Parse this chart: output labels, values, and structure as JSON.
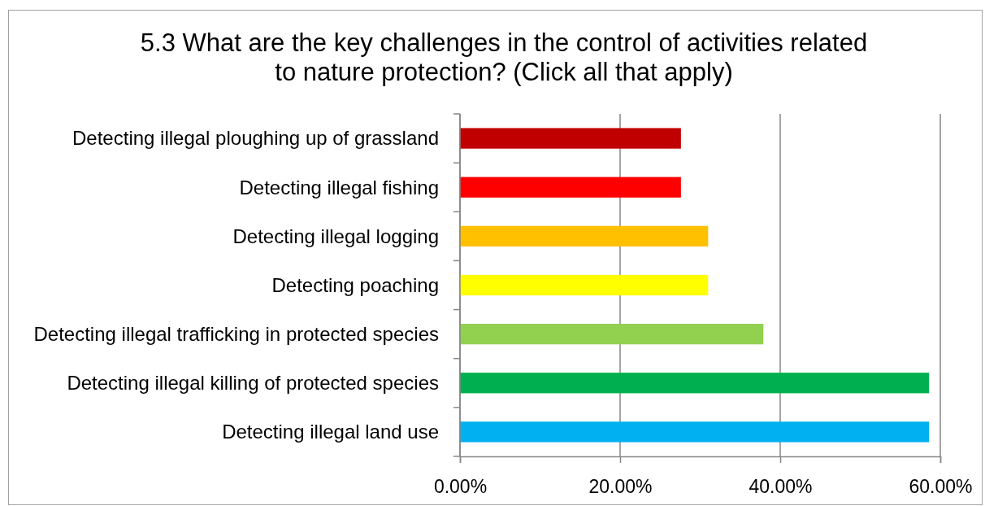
{
  "chart_data": {
    "type": "bar",
    "orientation": "horizontal",
    "title": "5.3 What are the key challenges in the control of activities related to nature protection? (Click all that apply)",
    "categories": [
      "Detecting illegal ploughing up of grassland",
      "Detecting illegal fishing",
      "Detecting illegal logging",
      "Detecting poaching",
      "Detecting illegal trafficking in protected species",
      "Detecting illegal killing of protected species",
      "Detecting illegal land use"
    ],
    "values": [
      27.6,
      27.6,
      31.0,
      31.0,
      37.9,
      58.6,
      58.6
    ],
    "colors": [
      "#c00000",
      "#ff0000",
      "#ffc000",
      "#ffff00",
      "#92d050",
      "#00b050",
      "#00b0f0"
    ],
    "xlim": [
      0,
      60
    ],
    "xticks": [
      {
        "value": 0,
        "label": "0.00%"
      },
      {
        "value": 20,
        "label": "20.00%"
      },
      {
        "value": 40,
        "label": "40.00%"
      },
      {
        "value": 60,
        "label": "60.00%"
      }
    ],
    "grid": "x"
  }
}
